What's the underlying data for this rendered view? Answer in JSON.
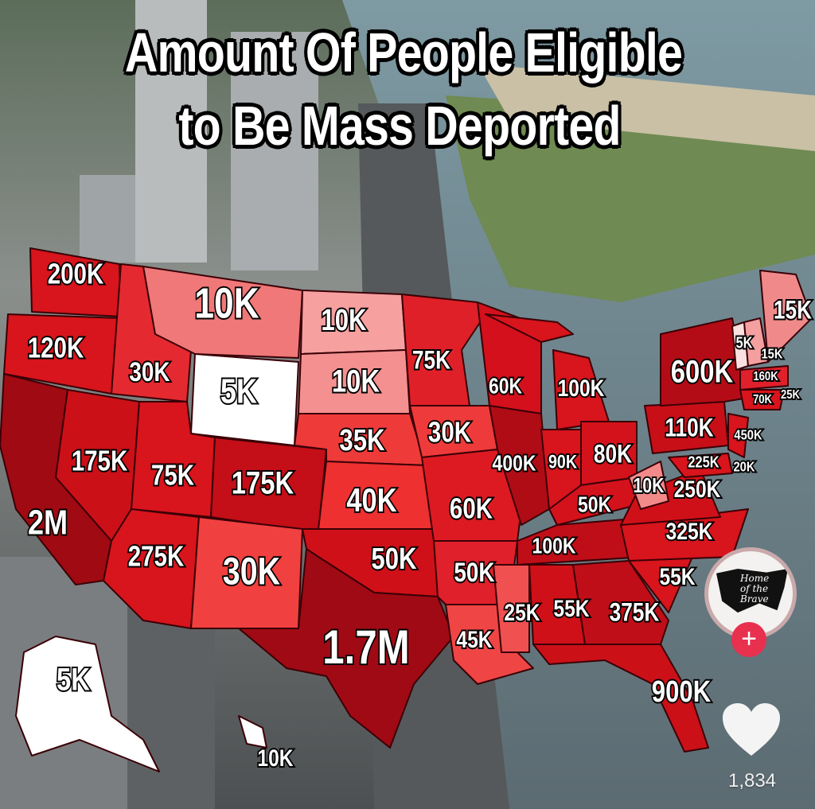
{
  "title": {
    "line1": "Amount Of People Eligible",
    "line2": "to Be Mass Deported"
  },
  "colors": {
    "dark_red": "#a00a14",
    "red": "#d4121c",
    "bright_red": "#ee3a3a",
    "pink": "#f49090",
    "white": "#ffffff",
    "follow_button": "#e8304f"
  },
  "map": {
    "labels": [
      "200K",
      "120K",
      "30K",
      "10K",
      "5K",
      "10K",
      "10K",
      "75K",
      "60K",
      "100K",
      "600K",
      "15K",
      "5K",
      "15K",
      "160K",
      "70K",
      "25K",
      "110K",
      "450K",
      "225K",
      "20K",
      "10K",
      "250K",
      "35K",
      "30K",
      "400K",
      "90K",
      "80K",
      "50K",
      "325K",
      "175K",
      "75K",
      "175K",
      "40K",
      "60K",
      "2M",
      "275K",
      "30K",
      "50K",
      "50K",
      "100K",
      "55K",
      "25K",
      "55K",
      "375K",
      "45K",
      "1.7M",
      "900K",
      "5K",
      "10K"
    ]
  },
  "overlay": {
    "avatar_text": "Home of the Brave",
    "follow_icon": "plus-icon",
    "follow_label": "+",
    "like_icon": "heart-icon",
    "like_count": "1,834"
  }
}
